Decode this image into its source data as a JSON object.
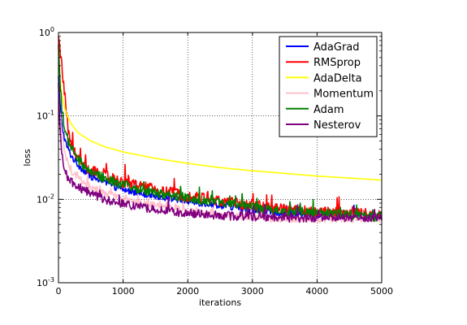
{
  "chart_data": {
    "type": "line",
    "title": "",
    "xlabel": "iterations",
    "ylabel": "loss",
    "xlim": [
      0,
      5000
    ],
    "ylim": [
      0.001,
      1
    ],
    "yscale": "log",
    "grid": true,
    "legend_position": "top-right",
    "x_ticks": [
      0,
      1000,
      2000,
      3000,
      4000,
      5000
    ],
    "x_tick_labels": [
      "0",
      "1000",
      "2000",
      "3000",
      "4000",
      "5000"
    ],
    "y_ticks": [
      0.001,
      0.01,
      0.1,
      1
    ],
    "y_tick_labels": [
      {
        "base": "10",
        "exp": "-3"
      },
      {
        "base": "10",
        "exp": "-2"
      },
      {
        "base": "10",
        "exp": "-1"
      },
      {
        "base": "10",
        "exp": "0"
      }
    ],
    "series": [
      {
        "name": "AdaGrad",
        "color": "#0000ff",
        "noise": 0.12,
        "x": [
          0,
          20,
          50,
          100,
          150,
          200,
          300,
          400,
          500,
          700,
          1000,
          1500,
          2000,
          2500,
          3000,
          3500,
          4000,
          4500,
          5000
        ],
        "y": [
          0.3,
          0.15,
          0.08,
          0.05,
          0.04,
          0.033,
          0.026,
          0.022,
          0.019,
          0.016,
          0.013,
          0.011,
          0.0095,
          0.0085,
          0.0075,
          0.0068,
          0.0064,
          0.0062,
          0.006
        ]
      },
      {
        "name": "RMSprop",
        "color": "#ff0000",
        "noise": 0.2,
        "x": [
          0,
          20,
          50,
          100,
          150,
          200,
          300,
          400,
          500,
          700,
          1000,
          1500,
          2000,
          2500,
          3000,
          3500,
          4000,
          4500,
          5000
        ],
        "y": [
          0.9,
          0.7,
          0.4,
          0.15,
          0.07,
          0.045,
          0.03,
          0.025,
          0.022,
          0.019,
          0.016,
          0.013,
          0.011,
          0.0095,
          0.0085,
          0.0075,
          0.007,
          0.0068,
          0.0065
        ]
      },
      {
        "name": "AdaDelta",
        "color": "#ffff00",
        "noise": 0,
        "x": [
          0,
          20,
          50,
          100,
          150,
          200,
          300,
          500,
          700,
          1000,
          1500,
          2000,
          2500,
          3000,
          3500,
          4000,
          4500,
          5000
        ],
        "y": [
          0.6,
          0.3,
          0.18,
          0.12,
          0.095,
          0.08,
          0.063,
          0.05,
          0.043,
          0.037,
          0.031,
          0.027,
          0.024,
          0.022,
          0.0205,
          0.019,
          0.018,
          0.017
        ]
      },
      {
        "name": "Momentum",
        "color": "#ffc0cb",
        "noise": 0.12,
        "x": [
          0,
          20,
          50,
          100,
          150,
          200,
          300,
          400,
          500,
          700,
          1000,
          1500,
          2000,
          2500,
          3000,
          3500,
          4000,
          4500,
          5000
        ],
        "y": [
          0.2,
          0.1,
          0.06,
          0.035,
          0.027,
          0.022,
          0.018,
          0.016,
          0.014,
          0.012,
          0.01,
          0.0085,
          0.0072,
          0.0065,
          0.006,
          0.0058,
          0.0058,
          0.0058,
          0.0058
        ]
      },
      {
        "name": "Adam",
        "color": "#008000",
        "noise": 0.17,
        "x": [
          0,
          20,
          50,
          100,
          150,
          200,
          300,
          400,
          500,
          700,
          1000,
          1500,
          2000,
          2500,
          3000,
          3500,
          4000,
          4500,
          5000
        ],
        "y": [
          0.7,
          0.3,
          0.12,
          0.07,
          0.05,
          0.04,
          0.03,
          0.025,
          0.021,
          0.018,
          0.015,
          0.012,
          0.0105,
          0.009,
          0.008,
          0.0072,
          0.0068,
          0.0065,
          0.0062
        ]
      },
      {
        "name": "Nesterov",
        "color": "#800080",
        "noise": 0.15,
        "x": [
          0,
          20,
          50,
          100,
          150,
          200,
          300,
          400,
          500,
          700,
          1000,
          1500,
          2000,
          2500,
          3000,
          3500,
          4000,
          4500,
          5000
        ],
        "y": [
          0.25,
          0.08,
          0.035,
          0.022,
          0.018,
          0.016,
          0.014,
          0.013,
          0.012,
          0.01,
          0.0088,
          0.0075,
          0.0068,
          0.0064,
          0.0062,
          0.006,
          0.006,
          0.006,
          0.006
        ]
      }
    ]
  }
}
